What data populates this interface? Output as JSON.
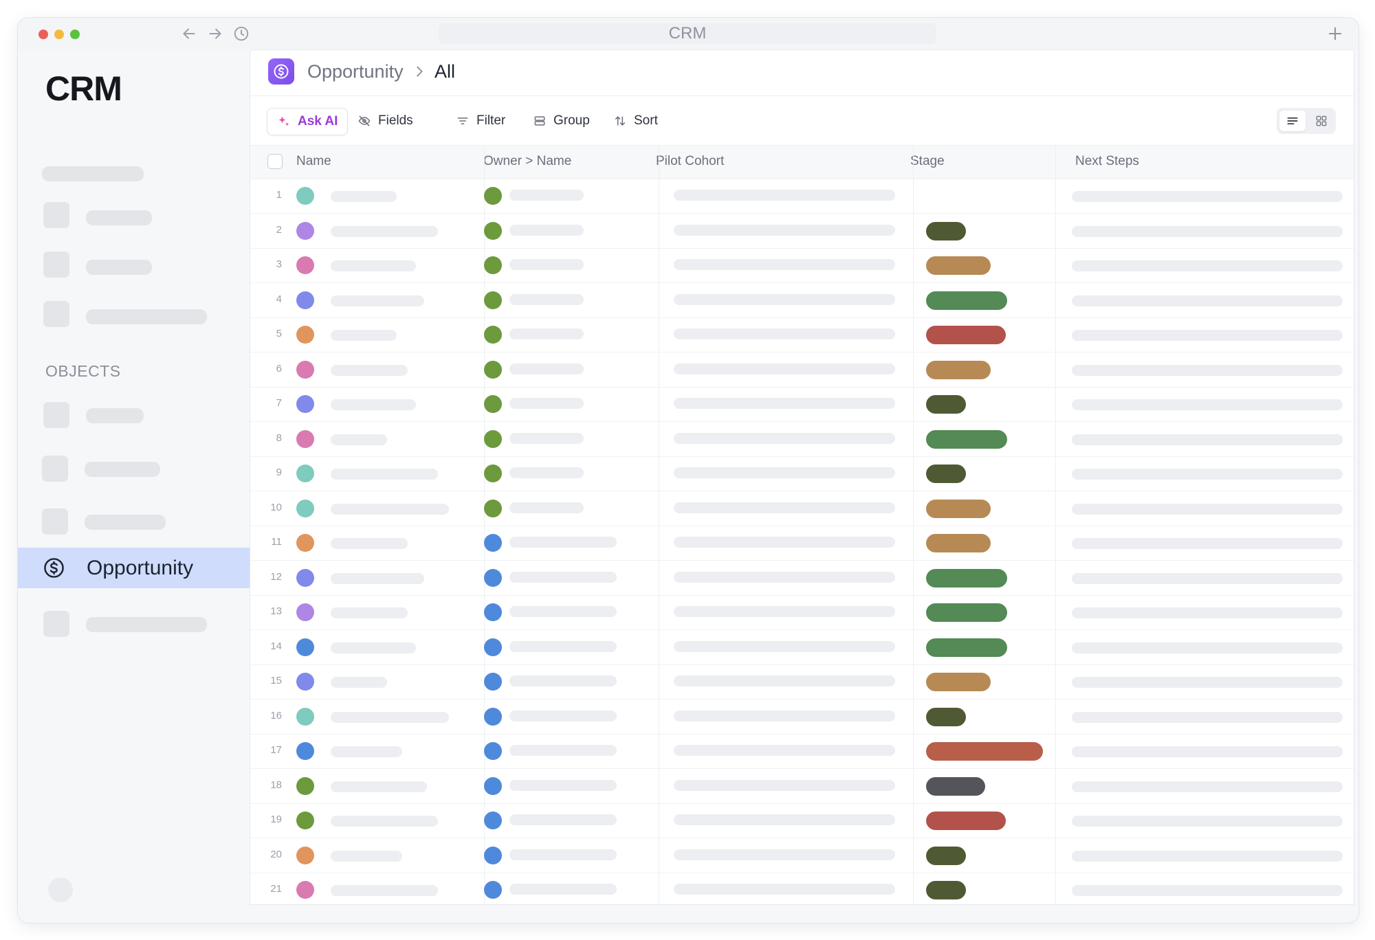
{
  "window": {
    "url_title": "CRM"
  },
  "icons": {
    "back": "arrow-left-icon",
    "forward": "arrow-right-icon",
    "history": "clock-icon",
    "new_tab": "plus-icon",
    "object": "dollar-circle-icon",
    "separator": "chevron-right-icon",
    "ask_ai": "sparkle-icon",
    "fields": "eye-off-icon",
    "filter": "filter-icon",
    "group": "group-icon",
    "sort": "sort-icon",
    "list_view": "list-icon",
    "grid_view": "grid-icon"
  },
  "sidebar": {
    "brand": "CRM",
    "section_label": "OBJECTS",
    "active_item": {
      "label": "Opportunity",
      "background": "#cfdcfb"
    }
  },
  "breadcrumb": {
    "parent": "Opportunity",
    "current": "All"
  },
  "toolbar": {
    "ask_ai": "Ask AI",
    "fields": "Fields",
    "filter": "Filter",
    "group": "Group",
    "sort": "Sort"
  },
  "table": {
    "columns": [
      "Name",
      "Owner > Name",
      "Pilot Cohort",
      "Stage",
      "Next Steps"
    ],
    "colors": {
      "teal": "#7fcbbe",
      "lavender": "#ae86e6",
      "pink": "#d97ab1",
      "indigo": "#8189ea",
      "orange": "#e0955c",
      "blue": "#4f89dc",
      "green": "#6c9a3d",
      "olive": "#4f5a35",
      "tan": "#b78a55",
      "forest": "#538a55",
      "red": "#b3524a",
      "rust": "#b85e4a",
      "charcoal": "#53555a"
    },
    "rows": [
      {
        "num": "1",
        "name_dot": "teal",
        "owner_dot": "green",
        "stage": null
      },
      {
        "num": "2",
        "name_dot": "lavender",
        "owner_dot": "green",
        "stage": "olive"
      },
      {
        "num": "3",
        "name_dot": "pink",
        "owner_dot": "green",
        "stage": "tan"
      },
      {
        "num": "4",
        "name_dot": "indigo",
        "owner_dot": "green",
        "stage": "forest"
      },
      {
        "num": "5",
        "name_dot": "orange",
        "owner_dot": "green",
        "stage": "red"
      },
      {
        "num": "6",
        "name_dot": "pink",
        "owner_dot": "green",
        "stage": "tan"
      },
      {
        "num": "7",
        "name_dot": "indigo",
        "owner_dot": "green",
        "stage": "olive"
      },
      {
        "num": "8",
        "name_dot": "pink",
        "owner_dot": "green",
        "stage": "forest"
      },
      {
        "num": "9",
        "name_dot": "teal",
        "owner_dot": "green",
        "stage": "olive"
      },
      {
        "num": "10",
        "name_dot": "teal",
        "owner_dot": "green",
        "stage": "tan"
      },
      {
        "num": "11",
        "name_dot": "orange",
        "owner_dot": "blue",
        "stage": "tan"
      },
      {
        "num": "12",
        "name_dot": "indigo",
        "owner_dot": "blue",
        "stage": "forest"
      },
      {
        "num": "13",
        "name_dot": "lavender",
        "owner_dot": "blue",
        "stage": "forest"
      },
      {
        "num": "14",
        "name_dot": "blue",
        "owner_dot": "blue",
        "stage": "forest"
      },
      {
        "num": "15",
        "name_dot": "indigo",
        "owner_dot": "blue",
        "stage": "tan"
      },
      {
        "num": "16",
        "name_dot": "teal",
        "owner_dot": "blue",
        "stage": "olive"
      },
      {
        "num": "17",
        "name_dot": "blue",
        "owner_dot": "blue",
        "stage": "rust"
      },
      {
        "num": "18",
        "name_dot": "green",
        "owner_dot": "blue",
        "stage": "charcoal"
      },
      {
        "num": "19",
        "name_dot": "green",
        "owner_dot": "blue",
        "stage": "red"
      },
      {
        "num": "20",
        "name_dot": "orange",
        "owner_dot": "blue",
        "stage": "olive"
      },
      {
        "num": "21",
        "name_dot": "pink",
        "owner_dot": "blue",
        "stage": "olive"
      }
    ]
  }
}
